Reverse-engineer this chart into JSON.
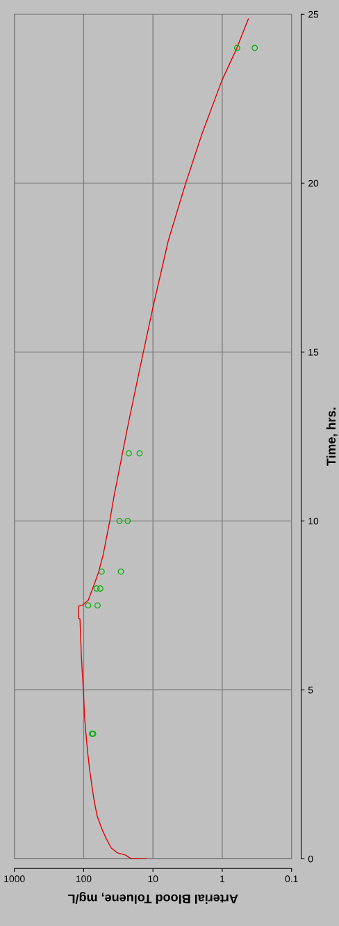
{
  "chart_data": {
    "type": "line",
    "xlabel": "Arterial Blood Toluene, mg/L",
    "ylabel": "Time, hrs.",
    "xlim": [
      1000,
      0.1
    ],
    "xticks": [
      1000,
      100,
      10,
      1,
      0.1
    ],
    "ylim": [
      0,
      25
    ],
    "yticks": [
      0,
      5,
      10,
      15,
      20,
      25
    ],
    "log": "x",
    "grid": true,
    "series": [
      {
        "color": "#e00000",
        "marker": "none",
        "line_style": "solid",
        "values": [
          0,
          0.01,
          0.11,
          0.18,
          0.32,
          0.59,
          0.86,
          1.27,
          1.75,
          2.16,
          2.64,
          3.19,
          3.74,
          4.2,
          4.82,
          6.0,
          7.1,
          7.12,
          7.48,
          7.5,
          7.65,
          8.0,
          8.48,
          9.02,
          10.0,
          10.74,
          11.77,
          12.8,
          13.48,
          14.42,
          16.32,
          18.3,
          19.97,
          21.46,
          23.04,
          23.95,
          24.86
        ],
        "x": [
          12.3,
          21,
          25,
          33,
          40,
          47,
          54,
          64,
          71,
          76,
          82,
          88,
          93,
          97,
          100,
          108,
          113,
          118,
          118,
          105,
          86,
          74,
          61,
          52,
          42,
          36.4,
          29,
          23.1,
          19.7,
          15.8,
          10.0,
          6.0,
          3.4,
          1.96,
          1.01,
          0.63,
          0.42
        ]
      },
      {
        "type": "scatter",
        "color": "#00b000",
        "marker": "circle",
        "values": [
          3.7,
          3.7,
          7.5,
          7.5,
          8,
          8,
          8.5,
          8.5,
          10,
          10,
          12,
          12,
          24,
          24
        ],
        "x": [
          76,
          73,
          86,
          63,
          65,
          57.5,
          55,
          29,
          30.4,
          23.2,
          22.3,
          15.6,
          0.61,
          0.34
        ]
      }
    ]
  }
}
